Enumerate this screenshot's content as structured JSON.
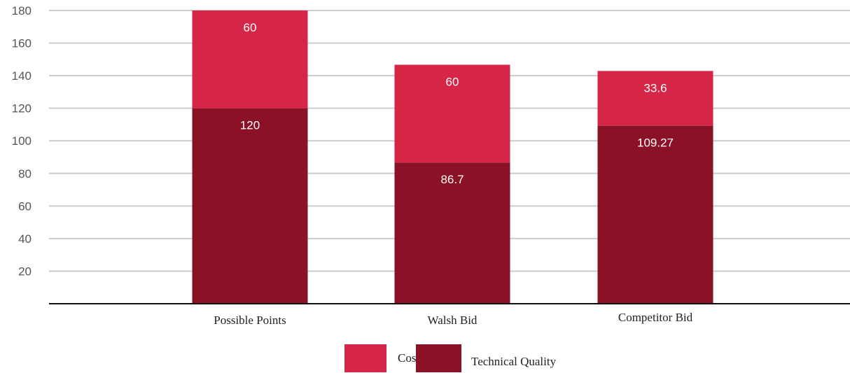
{
  "chart_data": {
    "type": "bar",
    "stacked": true,
    "categories": [
      "Possible Points",
      "Walsh Bid",
      "Competitor Bid"
    ],
    "series": [
      {
        "name": "Technical Quality",
        "values": [
          120,
          86.7,
          109.27
        ],
        "labels": [
          "120",
          "86.7",
          "109.27"
        ],
        "color": "#8b1126"
      },
      {
        "name": "Cost",
        "values": [
          60,
          60,
          33.6
        ],
        "labels": [
          "60",
          "60",
          "33.6"
        ],
        "color": "#d62647"
      }
    ],
    "ylim": [
      0,
      180
    ],
    "yticks": [
      "20",
      "40",
      "60",
      "80",
      "100",
      "120",
      "140",
      "160",
      "180"
    ],
    "grid": true,
    "legend_placement": "bottom-center",
    "legend": [
      "Cost",
      "Technical Quality"
    ],
    "title": "",
    "xlabel": "",
    "ylabel": ""
  }
}
